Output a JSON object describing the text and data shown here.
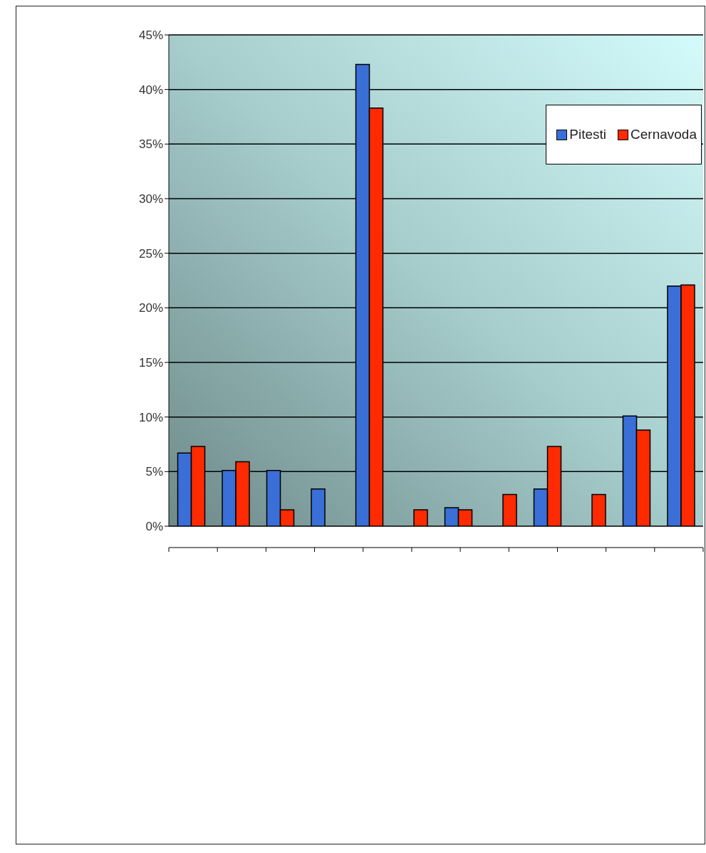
{
  "chart_data": {
    "type": "bar",
    "categories": [
      null,
      null,
      null,
      null,
      null,
      null,
      null,
      null,
      null,
      null,
      null,
      null
    ],
    "series": [
      {
        "name": "Pitesti",
        "color": "#3a6fd8",
        "values": [
          6.7,
          5.1,
          5.1,
          3.4,
          42.3,
          null,
          1.7,
          null,
          3.4,
          null,
          10.1,
          22.0
        ]
      },
      {
        "name": "Cernavoda",
        "color": "#ff2a00",
        "values": [
          7.3,
          5.9,
          1.5,
          null,
          38.3,
          1.5,
          1.5,
          2.9,
          7.3,
          2.9,
          8.8,
          22.1
        ]
      }
    ],
    "ylim": [
      0,
      45
    ],
    "yticks": [
      {
        "value": 0,
        "label": "0%"
      },
      {
        "value": 5,
        "label": "5%"
      },
      {
        "value": 10,
        "label": "10%"
      },
      {
        "value": 15,
        "label": "15%"
      },
      {
        "value": 20,
        "label": "20%"
      },
      {
        "value": 25,
        "label": "25%"
      },
      {
        "value": 30,
        "label": "30%"
      },
      {
        "value": 35,
        "label": "35%"
      },
      {
        "value": 40,
        "label": "40%"
      },
      {
        "value": 45,
        "label": "45%"
      }
    ],
    "grid": "y",
    "legend": "top right",
    "tick_labels": "y"
  }
}
